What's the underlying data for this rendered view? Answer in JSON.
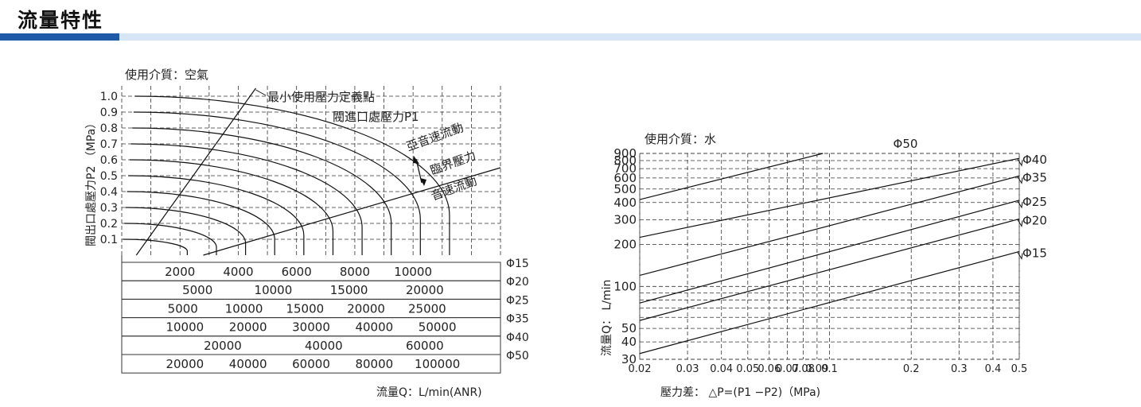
{
  "header": {
    "title": "流量特性",
    "accent_color": "#1e5aa8",
    "bar_color": "#d6e6f7"
  },
  "chart_data": [
    {
      "type": "line",
      "medium_label": "使用介質：空氣",
      "ylabel": "閥出口處壓力P2  （MPa）",
      "xlabel": "流量Q：L/min(ANR)",
      "y_ticks": [
        "1.0",
        "0.9",
        "0.8",
        "0.7",
        "0.6",
        "0.5",
        "0.4",
        "0.3",
        "0.2",
        "0.1"
      ],
      "ylim": [
        0,
        1.0
      ],
      "x_main_ticks": [
        "2000",
        "4000",
        "6000",
        "8000",
        "10000"
      ],
      "x_main_range": [
        0,
        13000
      ],
      "grid": true,
      "annotations": {
        "min_pressure": "最小使用壓力定義點",
        "inlet_pressure": "閥進口處壓力P1",
        "subsonic": "亞音速流動",
        "critical": "臨界壓力",
        "sonic": "音速流動"
      },
      "curves_inlet_pressure": [
        0.1,
        0.2,
        0.3,
        0.4,
        0.5,
        0.6,
        0.7,
        0.8,
        0.9,
        1.0
      ],
      "size_scales": [
        {
          "name": "Φ15",
          "ticks": [
            "2000",
            "4000",
            "6000",
            "8000",
            "10000"
          ]
        },
        {
          "name": "Φ20",
          "ticks": [
            "5000",
            "10000",
            "15000",
            "20000"
          ]
        },
        {
          "name": "Φ25",
          "ticks": [
            "5000",
            "10000",
            "15000",
            "20000",
            "25000"
          ]
        },
        {
          "name": "Φ35",
          "ticks": [
            "10000",
            "20000",
            "30000",
            "40000",
            "50000"
          ]
        },
        {
          "name": "Φ40",
          "ticks": [
            "20000",
            "40000",
            "60000"
          ]
        },
        {
          "name": "Φ50",
          "ticks": [
            "20000",
            "40000",
            "60000",
            "80000",
            "100000"
          ]
        }
      ]
    },
    {
      "type": "line",
      "medium_label": "使用介質：水",
      "ylabel": "流量Q：  L/min",
      "xlabel": "壓力差：   △P=(P1  −P2)（MPa)",
      "x_ticks": [
        "0.02",
        "0.03",
        "0.04",
        "0.05",
        "0.06",
        "0.07",
        "0.08",
        "0.09",
        "0.1",
        "0.2",
        "0.3",
        "0.4",
        "0.5"
      ],
      "x_tick_values": [
        0.02,
        0.03,
        0.04,
        0.05,
        0.06,
        0.07,
        0.08,
        0.09,
        0.1,
        0.2,
        0.3,
        0.4,
        0.5
      ],
      "xlim": [
        0.02,
        0.5
      ],
      "y_ticks": [
        "900",
        "800",
        "700",
        "600",
        "500",
        "400",
        "300",
        "200",
        "100",
        "50",
        "40",
        "30"
      ],
      "y_tick_values": [
        900,
        800,
        700,
        600,
        500,
        400,
        300,
        200,
        100,
        50,
        40,
        30
      ],
      "ylim": [
        30,
        900
      ],
      "log_x": true,
      "log_y": true,
      "grid": true,
      "series": [
        {
          "name": "Φ50",
          "x": [
            0.02,
            0.0946
          ],
          "y": [
            420,
            900
          ]
        },
        {
          "name": "Φ40",
          "x": [
            0.02,
            0.5
          ],
          "y": [
            225,
            830
          ]
        },
        {
          "name": "Φ35",
          "x": [
            0.02,
            0.5
          ],
          "y": [
            120,
            620
          ]
        },
        {
          "name": "Φ25",
          "x": [
            0.02,
            0.5
          ],
          "y": [
            76,
            415
          ]
        },
        {
          "name": "Φ20",
          "x": [
            0.02,
            0.5
          ],
          "y": [
            57,
            305
          ]
        },
        {
          "name": "Φ15",
          "x": [
            0.02,
            0.5
          ],
          "y": [
            33,
            178
          ]
        }
      ]
    }
  ]
}
